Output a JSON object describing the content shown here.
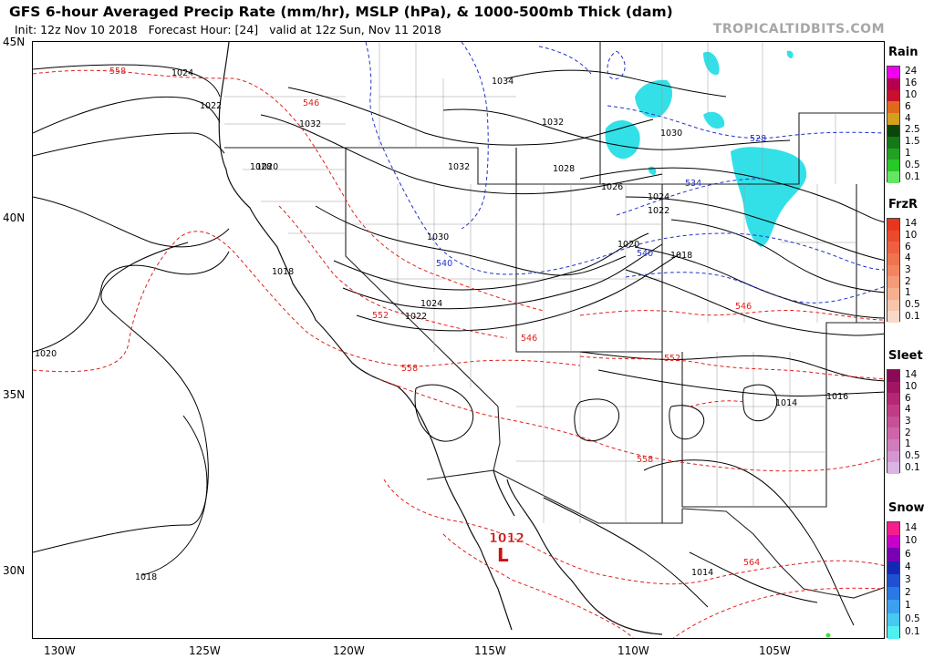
{
  "header": {
    "title": "GFS 6-hour Averaged Precip Rate (mm/hr), MSLP (hPa), & 1000-500mb Thick (dam)",
    "subtitle": "Init: 12z Nov 10 2018   Forecast Hour: [24]   valid at 12z Sun, Nov 11 2018",
    "brand": "TROPICALTIDBITS.COM"
  },
  "axes": {
    "lat_labels": [
      "45N",
      "40N",
      "35N",
      "30N"
    ],
    "lon_labels": [
      "130W",
      "125W",
      "120W",
      "115W",
      "110W",
      "105W"
    ]
  },
  "map": {
    "pressure_labels": [
      "1024",
      "1022",
      "1020",
      "1018",
      "1018",
      "1020",
      "1032",
      "1028",
      "1034",
      "1032",
      "1032",
      "1030",
      "1030",
      "1028",
      "1026",
      "1024",
      "1022",
      "1024",
      "1022",
      "1020",
      "1018",
      "1014",
      "1016",
      "1014"
    ],
    "thickness_labels": [
      "558",
      "546",
      "552",
      "546",
      "558",
      "552",
      "546",
      "558",
      "564"
    ],
    "thickness_labels_blue": [
      "540",
      "528",
      "534",
      "540"
    ],
    "low_center": {
      "value": "1012",
      "symbol": "L"
    },
    "colors": {
      "pressure": "#000000",
      "thickness_warm": "#e0201c",
      "thickness_cold": "#2233cc",
      "snow": "#33e0e8",
      "border": "#777777"
    }
  },
  "legends": [
    {
      "title": "Rain",
      "ticks": [
        "24",
        "16",
        "10",
        "6",
        "4",
        "2.5",
        "1.5",
        "1",
        "0.5",
        "0.1"
      ],
      "colors": [
        "#f000f0",
        "#b40050",
        "#c80f2d",
        "#e1691e",
        "#d2a01e",
        "#0a460a",
        "#147814",
        "#22a022",
        "#28c828",
        "#64e664"
      ]
    },
    {
      "title": "FrzR",
      "ticks": [
        "14",
        "10",
        "6",
        "4",
        "3",
        "2",
        "1",
        "0.5",
        "0.1"
      ],
      "colors": [
        "#e8361e",
        "#ec4a2e",
        "#ef6040",
        "#f07350",
        "#f28560",
        "#f49a78",
        "#f6b090",
        "#f8c4aa",
        "#fad8c8"
      ]
    },
    {
      "title": "Sleet",
      "ticks": [
        "14",
        "10",
        "6",
        "4",
        "3",
        "2",
        "1",
        "0.5",
        "0.1"
      ],
      "colors": [
        "#8b0a55",
        "#a01664",
        "#b42873",
        "#c03c87",
        "#c85096",
        "#cc66a8",
        "#d07cbc",
        "#d496d0",
        "#dab4e2"
      ]
    },
    {
      "title": "Snow",
      "ticks": [
        "14",
        "10",
        "6",
        "4",
        "3",
        "2",
        "1",
        "0.5",
        "0.1"
      ],
      "colors": [
        "#f51e8c",
        "#c800c8",
        "#7a00b4",
        "#1428b4",
        "#1e50d2",
        "#2878e6",
        "#3ca0f0",
        "#46c8f0",
        "#50f0f0"
      ]
    }
  ]
}
